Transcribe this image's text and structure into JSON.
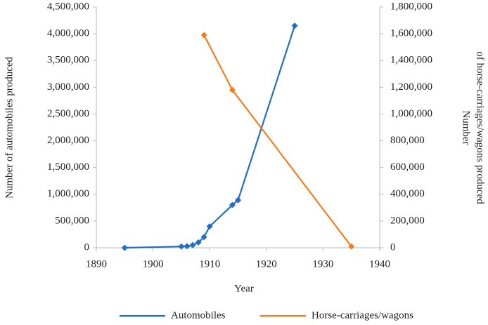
{
  "chart_data": {
    "type": "line",
    "x_label": "Year",
    "y_label": "Number of automobiles produced",
    "y2_label": [
      "Number",
      "of horse-carriages/wagons produced"
    ],
    "xlim": [
      1890,
      1940
    ],
    "xticks": [
      1890,
      1900,
      1910,
      1920,
      1930,
      1940
    ],
    "ylim": [
      0,
      4500000
    ],
    "yticks": [
      {
        "value": 0,
        "label": "0"
      },
      {
        "value": 500000,
        "label": "500,000"
      },
      {
        "value": 1000000,
        "label": "1,000,000"
      },
      {
        "value": 1500000,
        "label": "1,500,000"
      },
      {
        "value": 2000000,
        "label": "2,000,000"
      },
      {
        "value": 2500000,
        "label": "2,500,000"
      },
      {
        "value": 3000000,
        "label": "3,000,000"
      },
      {
        "value": 3500000,
        "label": "3,500,000"
      },
      {
        "value": 4000000,
        "label": "4,000,000"
      },
      {
        "value": 4500000,
        "label": "4,500,000"
      }
    ],
    "y2lim": [
      0,
      1800000
    ],
    "y2ticks": [
      {
        "value": 0,
        "label": "0"
      },
      {
        "value": 200000,
        "label": "200,000"
      },
      {
        "value": 400000,
        "label": "400,000"
      },
      {
        "value": 600000,
        "label": "600,000"
      },
      {
        "value": 800000,
        "label": "800,000"
      },
      {
        "value": 1000000,
        "label": "1,000,000"
      },
      {
        "value": 1200000,
        "label": "1,200,000"
      },
      {
        "value": 1400000,
        "label": "1,400,000"
      },
      {
        "value": 1600000,
        "label": "1,600,000"
      },
      {
        "value": 1800000,
        "label": "1,800,000"
      }
    ],
    "series": [
      {
        "name": "Automobiles",
        "color": "#1f6fc5",
        "x": [
          1895,
          1905,
          1906,
          1907,
          1908,
          1909,
          1910,
          1914,
          1915,
          1925
        ],
        "values": [
          0,
          25000,
          30000,
          50000,
          100000,
          200000,
          400000,
          800000,
          890000,
          4150000
        ]
      },
      {
        "name": "Horse-carriages/wagons",
        "color": "#f47d20",
        "axis": "y2",
        "x": [
          1909,
          1914,
          1935
        ],
        "values": [
          1590000,
          1180000,
          10000
        ]
      }
    ]
  }
}
